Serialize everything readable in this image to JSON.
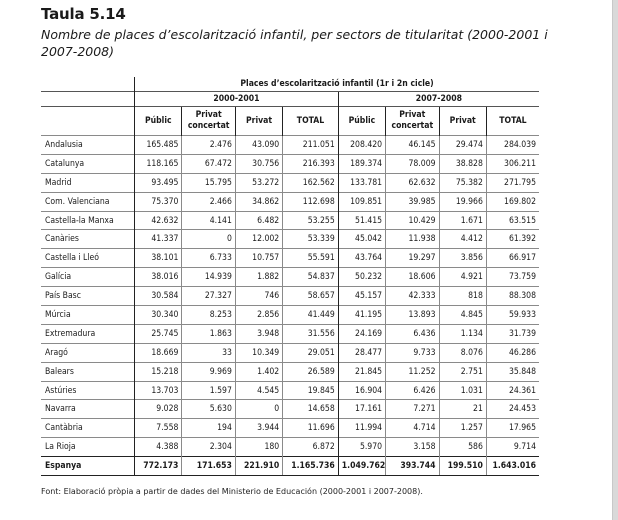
{
  "title": "Taula 5.14",
  "subtitle": "Nombre de places d’escolarització infantil, per sectors de titularitat (2000-2001 i 2007-2008)",
  "table": {
    "main_header": "Places d’escolarització infantil (1r i 2n cicle)",
    "periods": [
      "2000-2001",
      "2007-2008"
    ],
    "columns": [
      [
        "Públic"
      ],
      [
        "Privat",
        "concertat"
      ],
      [
        "Privat"
      ],
      [
        "TOTAL"
      ],
      [
        "Públic"
      ],
      [
        "Privat",
        "concertat"
      ],
      [
        "Privat"
      ],
      [
        "TOTAL"
      ]
    ],
    "rows": [
      {
        "region": "Andalusia",
        "values": [
          "165.485",
          "2.476",
          "43.090",
          "211.051",
          "208.420",
          "46.145",
          "29.474",
          "284.039"
        ]
      },
      {
        "region": "Catalunya",
        "values": [
          "118.165",
          "67.472",
          "30.756",
          "216.393",
          "189.374",
          "78.009",
          "38.828",
          "306.211"
        ]
      },
      {
        "region": "Madrid",
        "values": [
          "93.495",
          "15.795",
          "53.272",
          "162.562",
          "133.781",
          "62.632",
          "75.382",
          "271.795"
        ]
      },
      {
        "region": "Com. Valenciana",
        "values": [
          "75.370",
          "2.466",
          "34.862",
          "112.698",
          "109.851",
          "39.985",
          "19.966",
          "169.802"
        ]
      },
      {
        "region": "Castella-la Manxa",
        "values": [
          "42.632",
          "4.141",
          "6.482",
          "53.255",
          "51.415",
          "10.429",
          "1.671",
          "63.515"
        ]
      },
      {
        "region": "Canàries",
        "values": [
          "41.337",
          "0",
          "12.002",
          "53.339",
          "45.042",
          "11.938",
          "4.412",
          "61.392"
        ]
      },
      {
        "region": "Castella i Lleó",
        "values": [
          "38.101",
          "6.733",
          "10.757",
          "55.591",
          "43.764",
          "19.297",
          "3.856",
          "66.917"
        ]
      },
      {
        "region": "Galícia",
        "values": [
          "38.016",
          "14.939",
          "1.882",
          "54.837",
          "50.232",
          "18.606",
          "4.921",
          "73.759"
        ]
      },
      {
        "region": "País Basc",
        "values": [
          "30.584",
          "27.327",
          "746",
          "58.657",
          "45.157",
          "42.333",
          "818",
          "88.308"
        ]
      },
      {
        "region": "Múrcia",
        "values": [
          "30.340",
          "8.253",
          "2.856",
          "41.449",
          "41.195",
          "13.893",
          "4.845",
          "59.933"
        ]
      },
      {
        "region": "Extremadura",
        "values": [
          "25.745",
          "1.863",
          "3.948",
          "31.556",
          "24.169",
          "6.436",
          "1.134",
          "31.739"
        ]
      },
      {
        "region": "Aragó",
        "values": [
          "18.669",
          "33",
          "10.349",
          "29.051",
          "28.477",
          "9.733",
          "8.076",
          "46.286"
        ]
      },
      {
        "region": "Balears",
        "values": [
          "15.218",
          "9.969",
          "1.402",
          "26.589",
          "21.845",
          "11.252",
          "2.751",
          "35.848"
        ]
      },
      {
        "region": "Astúries",
        "values": [
          "13.703",
          "1.597",
          "4.545",
          "19.845",
          "16.904",
          "6.426",
          "1.031",
          "24.361"
        ]
      },
      {
        "region": "Navarra",
        "values": [
          "9.028",
          "5.630",
          "0",
          "14.658",
          "17.161",
          "7.271",
          "21",
          "24.453"
        ]
      },
      {
        "region": "Cantàbria",
        "values": [
          "7.558",
          "194",
          "3.944",
          "11.696",
          "11.994",
          "4.714",
          "1.257",
          "17.965"
        ]
      },
      {
        "region": "La Rioja",
        "values": [
          "4.388",
          "2.304",
          "180",
          "6.872",
          "5.970",
          "3.158",
          "586",
          "9.714"
        ]
      }
    ],
    "total": {
      "region": "Espanya",
      "values": [
        "772.173",
        "171.653",
        "221.910",
        "1.165.736",
        "1.049.762",
        "393.744",
        "199.510",
        "1.643.016"
      ]
    }
  },
  "source": "Font: Elaboració pròpia a partir de dades del Ministerio de Educación (2000-2001 i 2007-2008)."
}
